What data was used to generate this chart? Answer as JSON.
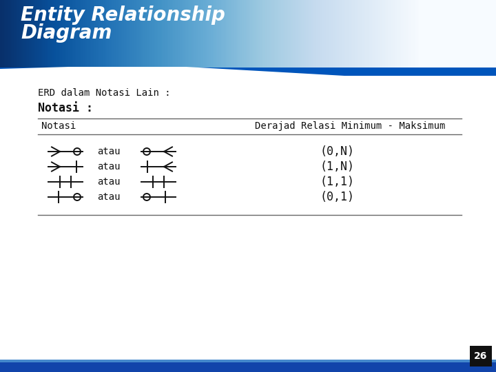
{
  "title_line1": "Entity Relationship",
  "title_line2": "Diagram",
  "subtitle": "ERD dalam Notasi Lain :",
  "section_label": "Notasi :",
  "col1_header": "Notasi",
  "col2_header": "Derajad Relasi Minimum - Maksimum",
  "atau_text": "atau",
  "rows": [
    {
      "degree": "(0,N)"
    },
    {
      "degree": "(1,N)"
    },
    {
      "degree": "(1,1)"
    },
    {
      "degree": "(0,1)"
    }
  ],
  "header_bg_top": "#55bbee",
  "header_bg_mid": "#2299dd",
  "header_bg_bot": "#0055bb",
  "title_color": "#ffffff",
  "white": "#ffffff",
  "dark_black": "#111111",
  "line_color": "#666666",
  "footer_blue": "#1144aa",
  "footer_dark": "#111111",
  "page_num": "26",
  "font_size_title": 20,
  "font_size_subtitle": 10,
  "font_size_section": 12,
  "font_size_header": 10,
  "font_size_body": 11,
  "font_size_degree": 12
}
